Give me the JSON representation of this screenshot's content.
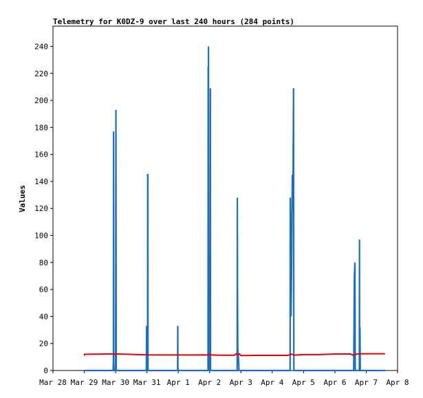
{
  "chart_data": {
    "type": "line",
    "title": "Telemetry for K0DZ-9 over last 240 hours (284 points)",
    "xlabel": "",
    "ylabel": "Values",
    "x_tick_labels": [
      "Mar 28",
      "Mar 29",
      "Mar 30",
      "Mar 31",
      "Apr 1",
      "Apr 2",
      "Apr 3",
      "Apr 4",
      "Apr 5",
      "Apr 6",
      "Apr 7",
      "Apr 8"
    ],
    "xlim": [
      0,
      11
    ],
    "y_ticks": [
      0,
      20,
      40,
      60,
      80,
      100,
      120,
      140,
      160,
      180,
      200,
      220,
      240
    ],
    "ylim": [
      0,
      255
    ],
    "grid": false,
    "series": [
      {
        "color": "#1f6fbf",
        "points": [
          [
            1.0,
            0
          ],
          [
            1.92,
            0
          ],
          [
            1.93,
            8
          ],
          [
            1.935,
            177
          ],
          [
            1.94,
            8
          ],
          [
            1.95,
            0
          ],
          [
            2.0,
            0
          ],
          [
            2.01,
            193
          ],
          [
            2.015,
            97
          ],
          [
            2.02,
            0
          ],
          [
            2.98,
            0
          ],
          [
            2.99,
            33
          ],
          [
            2.995,
            0
          ],
          [
            3.02,
            0
          ],
          [
            3.025,
            145
          ],
          [
            3.03,
            145
          ],
          [
            3.035,
            0
          ],
          [
            3.98,
            0
          ],
          [
            3.985,
            33
          ],
          [
            3.99,
            0
          ],
          [
            4.95,
            0
          ],
          [
            4.955,
            225
          ],
          [
            4.96,
            112
          ],
          [
            4.965,
            240
          ],
          [
            4.97,
            120
          ],
          [
            4.98,
            0
          ],
          [
            5.02,
            0
          ],
          [
            5.025,
            209
          ],
          [
            5.03,
            0
          ],
          [
            5.88,
            0
          ],
          [
            5.885,
            128
          ],
          [
            5.89,
            64
          ],
          [
            5.9,
            16
          ],
          [
            5.92,
            10
          ],
          [
            5.94,
            0
          ],
          [
            7.57,
            0
          ],
          [
            7.575,
            128
          ],
          [
            7.58,
            116
          ],
          [
            7.585,
            91
          ],
          [
            7.59,
            65
          ],
          [
            7.6,
            40
          ],
          [
            7.62,
            80
          ],
          [
            7.64,
            145
          ],
          [
            7.66,
            120
          ],
          [
            7.68,
            209
          ],
          [
            7.69,
            0
          ],
          [
            9.6,
            0
          ],
          [
            9.61,
            32
          ],
          [
            9.615,
            54
          ],
          [
            9.625,
            72
          ],
          [
            9.64,
            80
          ],
          [
            9.65,
            0
          ],
          [
            9.78,
            0
          ],
          [
            9.785,
            97
          ],
          [
            9.79,
            10
          ],
          [
            9.8,
            32
          ],
          [
            9.81,
            0
          ],
          [
            10.6,
            0
          ]
        ]
      },
      {
        "color": "#e00000",
        "points": [
          [
            1.0,
            11
          ],
          [
            1.01,
            12
          ],
          [
            2.0,
            12.3
          ],
          [
            3.0,
            11.6
          ],
          [
            4.0,
            11.5
          ],
          [
            4.5,
            11.5
          ],
          [
            5.0,
            11.6
          ],
          [
            5.3,
            11.3
          ],
          [
            5.8,
            11.3
          ],
          [
            5.85,
            12.4
          ],
          [
            5.9,
            11.4
          ],
          [
            5.95,
            12.3
          ],
          [
            6.0,
            11.1
          ],
          [
            6.5,
            11.2
          ],
          [
            7.0,
            11.2
          ],
          [
            7.5,
            11.2
          ],
          [
            7.6,
            12.2
          ],
          [
            7.7,
            11.4
          ],
          [
            8.0,
            11.8
          ],
          [
            8.5,
            11.8
          ],
          [
            9.0,
            12.2
          ],
          [
            9.5,
            12.2
          ],
          [
            9.6,
            11.2
          ],
          [
            9.7,
            12.3
          ],
          [
            10.0,
            12.4
          ],
          [
            10.6,
            12.4
          ]
        ]
      }
    ]
  }
}
